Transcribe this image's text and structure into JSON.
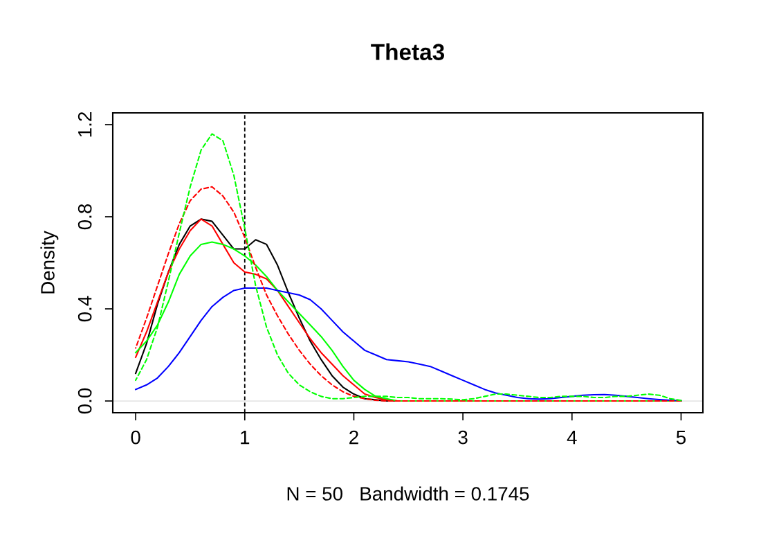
{
  "chart_data": {
    "type": "line",
    "title": "Theta3",
    "xlabel": "N = 50   Bandwidth = 0.1745",
    "ylabel": "Density",
    "x": [
      0,
      0.1,
      0.2,
      0.3,
      0.4,
      0.5,
      0.6,
      0.7,
      0.8,
      0.9,
      1.0,
      1.1,
      1.2,
      1.3,
      1.4,
      1.5,
      1.6,
      1.7,
      1.8,
      1.9,
      2.0,
      2.1,
      2.2,
      2.3,
      2.4,
      2.5,
      2.6,
      2.7,
      2.8,
      2.9,
      3.0,
      3.1,
      3.2,
      3.3,
      3.4,
      3.5,
      3.6,
      3.7,
      3.8,
      3.9,
      4.0,
      4.1,
      4.2,
      4.3,
      4.4,
      4.5,
      4.6,
      4.7,
      4.8,
      4.9,
      5.0
    ],
    "series": [
      {
        "color": "#000000",
        "line_style": "solid",
        "values": [
          0.12,
          0.25,
          0.42,
          0.56,
          0.68,
          0.76,
          0.79,
          0.78,
          0.72,
          0.66,
          0.66,
          0.7,
          0.68,
          0.59,
          0.47,
          0.36,
          0.26,
          0.18,
          0.11,
          0.06,
          0.03,
          0.01,
          0.005,
          0,
          0,
          null,
          null,
          null,
          null,
          null,
          null,
          null,
          null,
          null,
          null,
          null,
          null,
          null,
          null,
          null,
          null,
          null,
          null,
          null,
          null,
          null,
          null,
          null,
          null,
          null,
          null
        ]
      },
      {
        "color": "#ff0000",
        "line_style": "solid",
        "values": [
          0.19,
          0.3,
          0.43,
          0.56,
          0.66,
          0.74,
          0.79,
          0.76,
          0.68,
          0.6,
          0.56,
          0.55,
          0.53,
          0.48,
          0.41,
          0.34,
          0.27,
          0.21,
          0.16,
          0.11,
          0.07,
          0.03,
          0.015,
          0.005,
          0,
          0,
          0,
          0,
          0,
          0,
          0,
          0,
          0,
          0,
          0,
          0,
          0,
          0,
          0,
          0,
          0,
          0,
          0,
          0,
          0,
          0,
          0,
          0,
          0,
          0,
          0
        ]
      },
      {
        "color": "#00ff00",
        "line_style": "solid",
        "values": [
          0.21,
          0.26,
          0.33,
          0.43,
          0.55,
          0.63,
          0.68,
          0.69,
          0.68,
          0.66,
          0.63,
          0.59,
          0.54,
          0.48,
          0.43,
          0.38,
          0.33,
          0.28,
          0.22,
          0.15,
          0.09,
          0.05,
          0.02,
          0.01,
          0,
          0,
          0,
          0,
          0,
          0,
          0,
          0,
          0,
          0,
          0,
          0,
          0,
          0,
          0,
          0,
          0,
          0,
          0,
          0,
          0,
          0,
          0,
          0,
          0,
          0,
          0
        ]
      },
      {
        "color": "#0000ff",
        "line_style": "solid",
        "values": [
          0.05,
          0.07,
          0.1,
          0.15,
          0.21,
          0.28,
          0.35,
          0.41,
          0.45,
          0.48,
          0.49,
          0.49,
          0.49,
          0.48,
          0.47,
          0.46,
          0.44,
          0.4,
          0.35,
          0.3,
          0.26,
          0.22,
          0.2,
          0.18,
          0.175,
          0.17,
          0.16,
          0.15,
          0.13,
          0.11,
          0.09,
          0.07,
          0.05,
          0.035,
          0.025,
          0.015,
          0.01,
          0.008,
          0.01,
          0.015,
          0.02,
          0.025,
          0.027,
          0.028,
          0.025,
          0.02,
          0.015,
          0.01,
          0.006,
          0.003,
          0.001
        ]
      },
      {
        "color": "#ff0000",
        "line_style": "dashed",
        "values": [
          0.23,
          0.36,
          0.5,
          0.64,
          0.77,
          0.87,
          0.92,
          0.93,
          0.89,
          0.82,
          0.71,
          0.58,
          0.46,
          0.37,
          0.29,
          0.22,
          0.16,
          0.11,
          0.07,
          0.04,
          0.02,
          0.01,
          0.003,
          0,
          0,
          0,
          0,
          0,
          0,
          0,
          0,
          0,
          0,
          0,
          0,
          0,
          0,
          0,
          0,
          0,
          0,
          0,
          0,
          0,
          0,
          0,
          0,
          0,
          0,
          0,
          0
        ]
      },
      {
        "color": "#00ff00",
        "line_style": "dashed",
        "values": [
          0.09,
          0.18,
          0.32,
          0.52,
          0.73,
          0.93,
          1.09,
          1.16,
          1.13,
          0.98,
          0.75,
          0.5,
          0.32,
          0.2,
          0.12,
          0.07,
          0.04,
          0.02,
          0.01,
          0.01,
          0.015,
          0.02,
          0.02,
          0.02,
          0.015,
          0.015,
          0.01,
          0.01,
          0.01,
          0.008,
          0.005,
          0.01,
          0.02,
          0.03,
          0.03,
          0.025,
          0.02,
          0.015,
          0.015,
          0.02,
          0.02,
          0.02,
          0.015,
          0.015,
          0.02,
          0.02,
          0.025,
          0.03,
          0.025,
          0.01,
          0.002
        ]
      }
    ],
    "xlim": [
      -0.21,
      5.2
    ],
    "ylim": [
      -0.051,
      1.251
    ],
    "xticks": [
      0,
      1,
      2,
      3,
      4,
      5
    ],
    "yticks": [
      {
        "value": 0,
        "label": "0.0"
      },
      0.4,
      0.8,
      1.2
    ],
    "ref_lines": [
      {
        "axis": "y",
        "value": 0,
        "color": "#e6e6e6",
        "line_style": "solid"
      },
      {
        "axis": "x",
        "value": 1,
        "color": "#000000",
        "line_style": "dashed"
      }
    ],
    "grid": false,
    "legend": false
  }
}
